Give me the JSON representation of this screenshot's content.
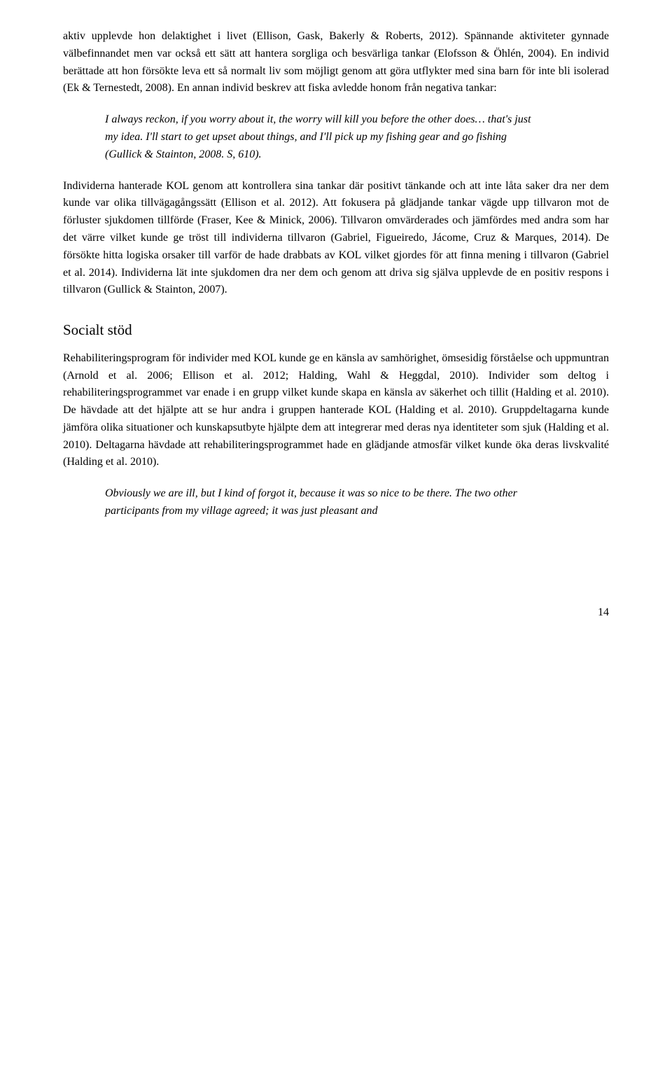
{
  "para1": "aktiv upplevde hon delaktighet i livet (Ellison, Gask, Bakerly & Roberts, 2012). Spännande aktiviteter gynnade välbefinnandet men var också ett sätt att hantera sorgliga och besvärliga tankar (Elofsson & Öhlén, 2004). En individ berättade att hon försökte leva ett så normalt liv som möjligt genom att göra utflykter med sina barn för inte bli isolerad (Ek & Ternestedt, 2008). En annan individ beskrev att fiska avledde honom från negativa tankar:",
  "quote1": "I always reckon, if you worry about it, the worry will kill you before the other does… that's just my idea. I'll start to get upset about things, and I'll pick up my fishing gear and go fishing (Gullick & Stainton, 2008. S, 610).",
  "para2": "Individerna hanterade KOL genom att kontrollera sina tankar där positivt tänkande och att inte låta saker dra ner dem kunde var olika tillvägagångssätt (Ellison et al. 2012). Att fokusera på glädjande tankar vägde upp tillvaron mot de förluster sjukdomen tillförde (Fraser, Kee & Minick, 2006). Tillvaron omvärderades och jämfördes med andra som har det värre vilket kunde ge tröst till individerna tillvaron (Gabriel, Figueiredo, Jácome, Cruz & Marques, 2014). De försökte hitta logiska orsaker till varför de hade drabbats av KOL vilket gjordes för att finna mening i tillvaron (Gabriel et al. 2014). Individerna lät inte sjukdomen dra ner dem och genom att driva sig själva upplevde de en positiv respons i tillvaron (Gullick & Stainton, 2007).",
  "heading": "Socialt stöd",
  "para3": "Rehabiliteringsprogram för individer med KOL kunde ge en känsla av samhörighet, ömsesidig förståelse och uppmuntran (Arnold et al. 2006; Ellison et al. 2012; Halding, Wahl & Heggdal, 2010). Individer som deltog i rehabiliteringsprogrammet var enade i en grupp vilket kunde skapa en känsla av säkerhet och tillit (Halding et al. 2010). De hävdade att det hjälpte att se hur andra i gruppen hanterade KOL (Halding et al. 2010). Gruppdeltagarna kunde jämföra olika situationer och kunskapsutbyte hjälpte dem att integrerar med deras nya identiteter som sjuk (Halding et al. 2010). Deltagarna hävdade att rehabiliteringsprogrammet hade en glädjande atmosfär vilket kunde öka deras livskvalité (Halding et al. 2010).",
  "quote2": "Obviously we are ill, but I kind of forgot it, because it was so nice to be there. The two other participants from my village agreed; it was just pleasant and",
  "pagenum": "14"
}
